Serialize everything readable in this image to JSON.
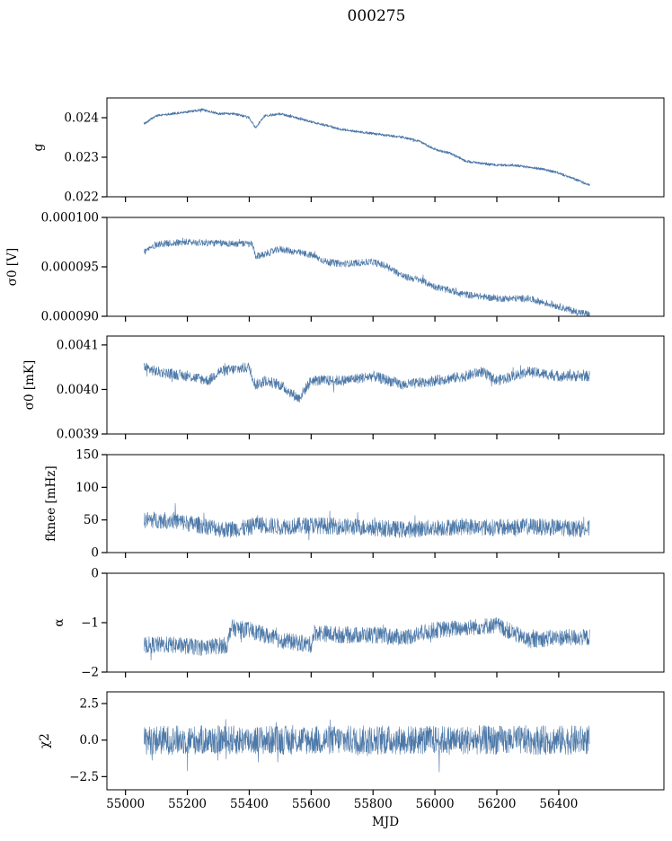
{
  "chart_data": [
    {
      "type": "line",
      "title": "000275",
      "xlabel": "",
      "ylabel": "g",
      "xlim": [
        54940,
        56740
      ],
      "ylim": [
        0.022,
        0.0245
      ],
      "yticks": [
        0.022,
        0.023,
        0.024
      ],
      "ytick_labels": [
        "0.022",
        "0.023",
        "0.024"
      ],
      "series": [
        {
          "x": [
            55060,
            55100,
            55150,
            55200,
            55250,
            55300,
            55350,
            55400,
            55420,
            55450,
            55500,
            55550,
            55600,
            55650,
            55700,
            55750,
            55800,
            55850,
            55900,
            55950,
            56000,
            56050,
            56100,
            56150,
            56200,
            56250,
            56300,
            56350,
            56400,
            56450,
            56500
          ],
          "y": [
            0.02385,
            0.02405,
            0.0241,
            0.02415,
            0.0242,
            0.0241,
            0.0241,
            0.024,
            0.02375,
            0.02405,
            0.0241,
            0.024,
            0.0239,
            0.0238,
            0.0237,
            0.02365,
            0.0236,
            0.02355,
            0.0235,
            0.0234,
            0.0232,
            0.0231,
            0.0229,
            0.02285,
            0.0228,
            0.0228,
            0.02275,
            0.0227,
            0.0226,
            0.02245,
            0.0223
          ],
          "noise": 3e-05
        }
      ],
      "grid": false
    },
    {
      "type": "line",
      "ylabel": "σ0 [V]",
      "xlim": [
        54940,
        56740
      ],
      "ylim": [
        9e-05,
        0.0001
      ],
      "yticks": [
        9e-05,
        9.5e-05,
        0.0001
      ],
      "ytick_labels": [
        "0.000090",
        "0.000095",
        "0.000100"
      ],
      "series": [
        {
          "x": [
            55060,
            55100,
            55200,
            55300,
            55410,
            55420,
            55500,
            55600,
            55650,
            55700,
            55800,
            55850,
            55900,
            55950,
            56000,
            56100,
            56150,
            56200,
            56300,
            56400,
            56450,
            56500
          ],
          "y": [
            9.65e-05,
            9.73e-05,
            9.75e-05,
            9.74e-05,
            9.73e-05,
            9.6e-05,
            9.68e-05,
            9.62e-05,
            9.55e-05,
            9.53e-05,
            9.55e-05,
            9.5e-05,
            9.4e-05,
            9.37e-05,
            9.3e-05,
            9.22e-05,
            9.2e-05,
            9.18e-05,
            9.18e-05,
            9.1e-05,
            9.05e-05,
            9.02e-05
          ],
          "noise": 3.5e-07
        }
      ],
      "grid": false
    },
    {
      "type": "line",
      "ylabel": "σ0 [mK]",
      "xlim": [
        54940,
        56740
      ],
      "ylim": [
        0.0039,
        0.00412
      ],
      "yticks": [
        0.0039,
        0.004,
        0.0041
      ],
      "ytick_labels": [
        "0.0039",
        "0.0040",
        "0.0041"
      ],
      "series": [
        {
          "x": [
            55060,
            55100,
            55200,
            55270,
            55300,
            55400,
            55420,
            55450,
            55500,
            55560,
            55600,
            55700,
            55800,
            55900,
            56000,
            56100,
            56150,
            56200,
            56300,
            56400,
            56500
          ],
          "y": [
            0.00405,
            0.00404,
            0.00403,
            0.00402,
            0.00404,
            0.00405,
            0.00401,
            0.00402,
            0.00401,
            0.00398,
            0.00402,
            0.00402,
            0.00403,
            0.00401,
            0.00402,
            0.00403,
            0.00404,
            0.00402,
            0.00404,
            0.00403,
            0.00403
          ],
          "noise": 1.2e-05
        }
      ],
      "grid": false
    },
    {
      "type": "line",
      "ylabel": "fknee [mHz]",
      "xlim": [
        54940,
        56740
      ],
      "ylim": [
        0,
        150
      ],
      "yticks": [
        0,
        50,
        100,
        150
      ],
      "ytick_labels": [
        "0",
        "50",
        "100",
        "150"
      ],
      "series": [
        {
          "x": [
            55060,
            55150,
            55200,
            55270,
            55320,
            55400,
            55420,
            55450,
            55500,
            55600,
            55700,
            55800,
            55900,
            56000,
            56100,
            56200,
            56300,
            56400,
            56500
          ],
          "y": [
            50,
            50,
            45,
            40,
            35,
            38,
            45,
            42,
            40,
            42,
            40,
            38,
            35,
            38,
            40,
            38,
            40,
            38,
            36
          ],
          "noise": 13
        }
      ],
      "grid": false
    },
    {
      "type": "line",
      "ylabel": "α",
      "xlim": [
        54940,
        56740
      ],
      "ylim": [
        -2,
        0
      ],
      "yticks": [
        -2,
        -1,
        0
      ],
      "ytick_labels": [
        "−2",
        "−1",
        "0"
      ],
      "series": [
        {
          "x": [
            55060,
            55150,
            55250,
            55330,
            55340,
            55400,
            55500,
            55600,
            55610,
            55700,
            55800,
            55900,
            56000,
            56100,
            56200,
            56300,
            56400,
            56500
          ],
          "y": [
            -1.45,
            -1.45,
            -1.5,
            -1.45,
            -1.1,
            -1.15,
            -1.35,
            -1.45,
            -1.2,
            -1.25,
            -1.25,
            -1.3,
            -1.15,
            -1.1,
            -1.05,
            -1.35,
            -1.3,
            -1.3
          ],
          "noise": 0.17
        }
      ],
      "grid": false
    },
    {
      "type": "line",
      "xlabel": "MJD",
      "ylabel": "χ2",
      "xlim": [
        54940,
        56740
      ],
      "ylim": [
        -3.4,
        3.3
      ],
      "yticks": [
        -2.5,
        0,
        2.5
      ],
      "ytick_labels": [
        "−2.5",
        "0.0",
        "2.5"
      ],
      "xticks": [
        55000,
        55200,
        55400,
        55600,
        55800,
        56000,
        56200,
        56400
      ],
      "xtick_labels": [
        "55000",
        "55200",
        "55400",
        "55600",
        "55800",
        "56000",
        "56200",
        "56400"
      ],
      "series": [
        {
          "x": [
            55060,
            56500
          ],
          "y": [
            0,
            0
          ],
          "noise": 1.0
        }
      ],
      "grid": false
    }
  ]
}
